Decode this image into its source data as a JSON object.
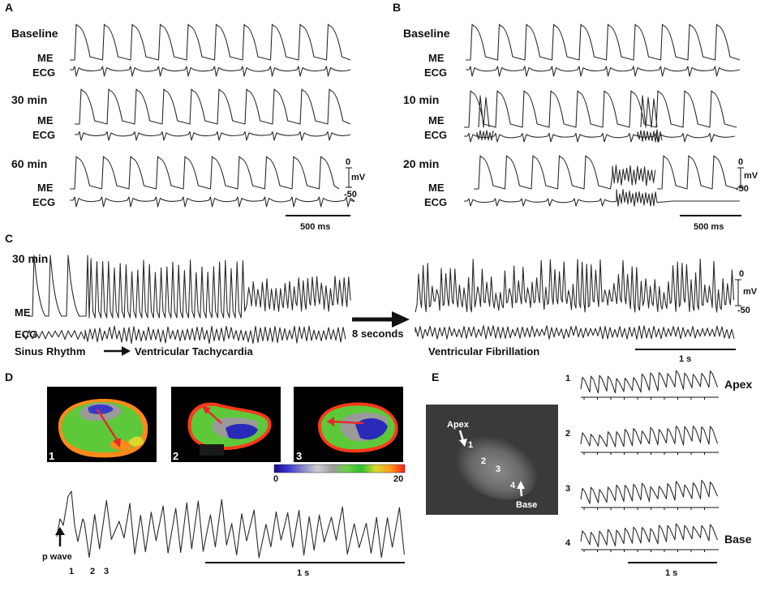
{
  "panels": {
    "A": {
      "letter": "A",
      "rows": [
        {
          "condition": "Baseline",
          "me_label": "ME",
          "ecg_label": "ECG"
        },
        {
          "condition": "30 min",
          "me_label": "ME",
          "ecg_label": "ECG"
        },
        {
          "condition": "60 min",
          "me_label": "ME",
          "ecg_label": "ECG"
        }
      ],
      "scale_top": "0",
      "scale_unit": "mV",
      "scale_bottom": "-50",
      "time_scale": "500 ms"
    },
    "B": {
      "letter": "B",
      "rows": [
        {
          "condition": "Baseline",
          "me_label": "ME",
          "ecg_label": "ECG"
        },
        {
          "condition": "10 min",
          "me_label": "ME",
          "ecg_label": "ECG"
        },
        {
          "condition": "20 min",
          "me_label": "ME",
          "ecg_label": "ECG"
        }
      ],
      "scale_top": "0",
      "scale_unit": "mV",
      "scale_bottom": "-50",
      "time_scale": "500 ms"
    },
    "C": {
      "letter": "C",
      "condition": "30 min",
      "me_label": "ME",
      "ecg_label": "ECG",
      "sinus_label": "Sinus Rhythm",
      "vt_label": "Ventricular Tachycardia",
      "interval_label": "8 seconds",
      "vf_label": "Ventricular Fibrillation",
      "scale_top": "0",
      "scale_unit": "mV",
      "scale_bottom": "-50",
      "time_scale": "1 s"
    },
    "D": {
      "letter": "D",
      "map_numbers": [
        "1",
        "2",
        "3"
      ],
      "colorbar_min": "0",
      "colorbar_max": "20",
      "colorbar_colors": [
        "#1a0a8a",
        "#3a3ad0",
        "#8a8ac8",
        "#cfcfcf",
        "#9c9c9c",
        "#6fd04a",
        "#2fbf2f",
        "#d8d830",
        "#ff9a1a",
        "#ff1a1a"
      ],
      "p_wave_label": "p wave",
      "trace_markers": [
        "1",
        "2",
        "3"
      ],
      "time_scale": "1 s"
    },
    "E": {
      "letter": "E",
      "apex_label": "Apex",
      "base_label": "Base",
      "site_numbers": [
        "1",
        "2",
        "3",
        "4"
      ],
      "trace_numbers": [
        "1",
        "2",
        "3",
        "4"
      ],
      "right_apex_label": "Apex",
      "right_base_label": "Base",
      "time_scale": "1 s"
    }
  },
  "colors": {
    "background": "#ffffff",
    "trace": "#2a2a2a",
    "arrow_red": "#e8282a",
    "map_green": "#5dc93a"
  }
}
